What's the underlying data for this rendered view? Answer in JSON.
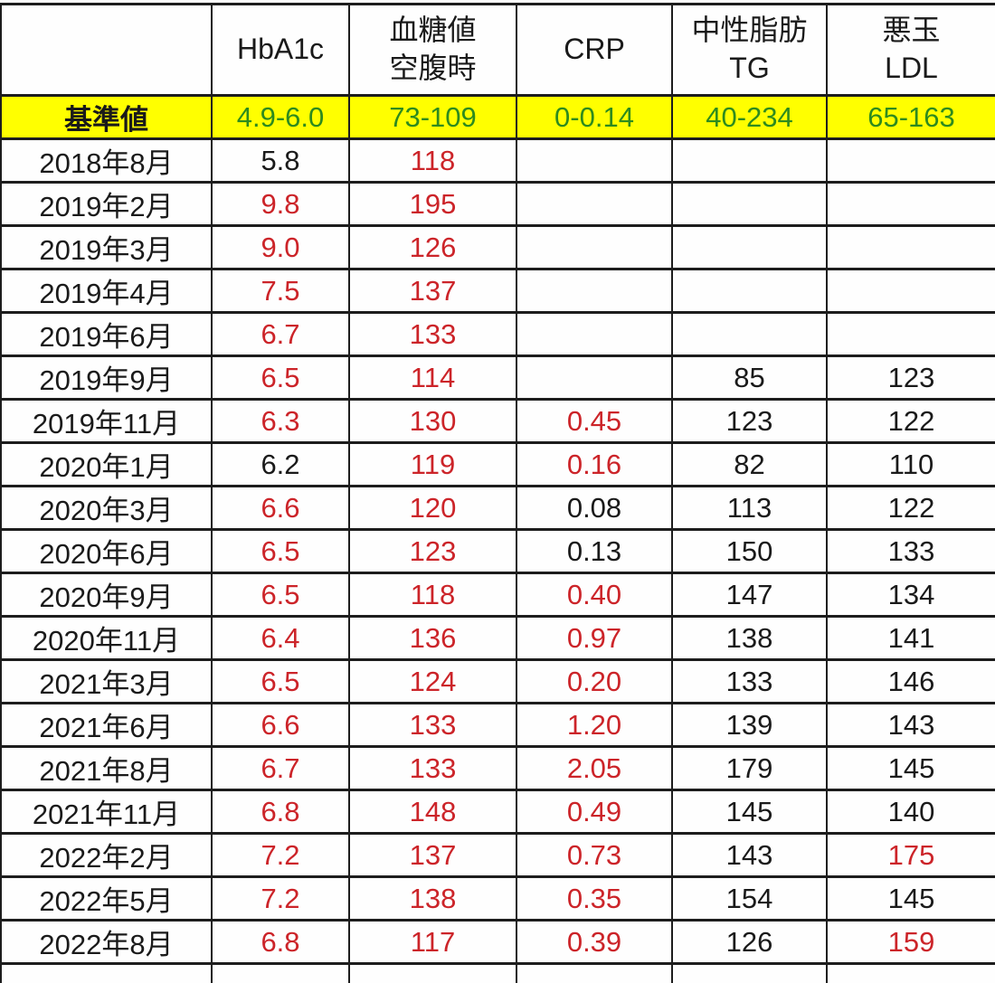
{
  "colors": {
    "grid": "#1d1d1d",
    "value_red": "#cc2429",
    "value_black": "#1a1a1a",
    "reference_green": "#2e8b1e",
    "reference_bg_yellow": "#ffff00"
  },
  "chart_data": {
    "type": "table",
    "title": "",
    "columns": [
      {
        "lines": [
          ""
        ]
      },
      {
        "lines": [
          "HbA1c"
        ]
      },
      {
        "lines": [
          "血糖値",
          "空腹時"
        ]
      },
      {
        "lines": [
          "CRP"
        ]
      },
      {
        "lines": [
          "中性脂肪",
          "TG"
        ]
      },
      {
        "lines": [
          "悪玉",
          "LDL"
        ]
      }
    ],
    "reference_row": {
      "label": "基準値",
      "values": [
        "4.9-6.0",
        "73-109",
        "0-0.14",
        "40-234",
        "65-163"
      ]
    },
    "rows": [
      {
        "date": "2018年8月",
        "values": [
          {
            "t": "5.8",
            "c": "black"
          },
          {
            "t": "118",
            "c": "red"
          },
          null,
          null,
          null
        ]
      },
      {
        "date": "2019年2月",
        "values": [
          {
            "t": "9.8",
            "c": "red"
          },
          {
            "t": "195",
            "c": "red"
          },
          null,
          null,
          null
        ]
      },
      {
        "date": "2019年3月",
        "values": [
          {
            "t": "9.0",
            "c": "red"
          },
          {
            "t": "126",
            "c": "red"
          },
          null,
          null,
          null
        ]
      },
      {
        "date": "2019年4月",
        "values": [
          {
            "t": "7.5",
            "c": "red"
          },
          {
            "t": "137",
            "c": "red"
          },
          null,
          null,
          null
        ]
      },
      {
        "date": "2019年6月",
        "values": [
          {
            "t": "6.7",
            "c": "red"
          },
          {
            "t": "133",
            "c": "red"
          },
          null,
          null,
          null
        ]
      },
      {
        "date": "2019年9月",
        "values": [
          {
            "t": "6.5",
            "c": "red"
          },
          {
            "t": "114",
            "c": "red"
          },
          null,
          {
            "t": "85",
            "c": "black"
          },
          {
            "t": "123",
            "c": "black"
          }
        ]
      },
      {
        "date": "2019年11月",
        "values": [
          {
            "t": "6.3",
            "c": "red"
          },
          {
            "t": "130",
            "c": "red"
          },
          {
            "t": "0.45",
            "c": "red"
          },
          {
            "t": "123",
            "c": "black"
          },
          {
            "t": "122",
            "c": "black"
          }
        ]
      },
      {
        "date": "2020年1月",
        "values": [
          {
            "t": "6.2",
            "c": "black"
          },
          {
            "t": "119",
            "c": "red"
          },
          {
            "t": "0.16",
            "c": "red"
          },
          {
            "t": "82",
            "c": "black"
          },
          {
            "t": "110",
            "c": "black"
          }
        ]
      },
      {
        "date": "2020年3月",
        "values": [
          {
            "t": "6.6",
            "c": "red"
          },
          {
            "t": "120",
            "c": "red"
          },
          {
            "t": "0.08",
            "c": "black"
          },
          {
            "t": "113",
            "c": "black"
          },
          {
            "t": "122",
            "c": "black"
          }
        ]
      },
      {
        "date": "2020年6月",
        "values": [
          {
            "t": "6.5",
            "c": "red"
          },
          {
            "t": "123",
            "c": "red"
          },
          {
            "t": "0.13",
            "c": "black"
          },
          {
            "t": "150",
            "c": "black"
          },
          {
            "t": "133",
            "c": "black"
          }
        ]
      },
      {
        "date": "2020年9月",
        "values": [
          {
            "t": "6.5",
            "c": "red"
          },
          {
            "t": "118",
            "c": "red"
          },
          {
            "t": "0.40",
            "c": "red"
          },
          {
            "t": "147",
            "c": "black"
          },
          {
            "t": "134",
            "c": "black"
          }
        ]
      },
      {
        "date": "2020年11月",
        "values": [
          {
            "t": "6.4",
            "c": "red"
          },
          {
            "t": "136",
            "c": "red"
          },
          {
            "t": "0.97",
            "c": "red"
          },
          {
            "t": "138",
            "c": "black"
          },
          {
            "t": "141",
            "c": "black"
          }
        ]
      },
      {
        "date": "2021年3月",
        "values": [
          {
            "t": "6.5",
            "c": "red"
          },
          {
            "t": "124",
            "c": "red"
          },
          {
            "t": "0.20",
            "c": "red"
          },
          {
            "t": "133",
            "c": "black"
          },
          {
            "t": "146",
            "c": "black"
          }
        ]
      },
      {
        "date": "2021年6月",
        "values": [
          {
            "t": "6.6",
            "c": "red"
          },
          {
            "t": "133",
            "c": "red"
          },
          {
            "t": "1.20",
            "c": "red"
          },
          {
            "t": "139",
            "c": "black"
          },
          {
            "t": "143",
            "c": "black"
          }
        ]
      },
      {
        "date": "2021年8月",
        "values": [
          {
            "t": "6.7",
            "c": "red"
          },
          {
            "t": "133",
            "c": "red"
          },
          {
            "t": "2.05",
            "c": "red"
          },
          {
            "t": "179",
            "c": "black"
          },
          {
            "t": "145",
            "c": "black"
          }
        ]
      },
      {
        "date": "2021年11月",
        "values": [
          {
            "t": "6.8",
            "c": "red"
          },
          {
            "t": "148",
            "c": "red"
          },
          {
            "t": "0.49",
            "c": "red"
          },
          {
            "t": "145",
            "c": "black"
          },
          {
            "t": "140",
            "c": "black"
          }
        ]
      },
      {
        "date": "2022年2月",
        "values": [
          {
            "t": "7.2",
            "c": "red"
          },
          {
            "t": "137",
            "c": "red"
          },
          {
            "t": "0.73",
            "c": "red"
          },
          {
            "t": "143",
            "c": "black"
          },
          {
            "t": "175",
            "c": "red"
          }
        ]
      },
      {
        "date": "2022年5月",
        "values": [
          {
            "t": "7.2",
            "c": "red"
          },
          {
            "t": "138",
            "c": "red"
          },
          {
            "t": "0.35",
            "c": "red"
          },
          {
            "t": "154",
            "c": "black"
          },
          {
            "t": "145",
            "c": "black"
          }
        ]
      },
      {
        "date": "2022年8月",
        "values": [
          {
            "t": "6.8",
            "c": "red"
          },
          {
            "t": "117",
            "c": "red"
          },
          {
            "t": "0.39",
            "c": "red"
          },
          {
            "t": "126",
            "c": "black"
          },
          {
            "t": "159",
            "c": "red"
          }
        ]
      }
    ],
    "trailing_empty_rows": 1
  }
}
